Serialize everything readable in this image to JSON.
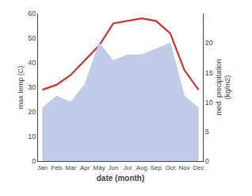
{
  "chart_data": {
    "type": "line",
    "x_label": "date (month)",
    "y_label": "max temp (C)",
    "y2_label": "med. precipitation\n(kg/m2)",
    "categories": [
      "Jan",
      "Feb",
      "Mar",
      "Apr",
      "May",
      "Jun",
      "Jul",
      "Aug",
      "Sep",
      "Oct",
      "Nov",
      "Dec"
    ],
    "series": [
      {
        "name": "precip",
        "type": "area",
        "axis": "y2",
        "color": "#c0cce8",
        "values": [
          9,
          11,
          10,
          13,
          20,
          17,
          18,
          18,
          19,
          20,
          11,
          9
        ]
      },
      {
        "name": "temp",
        "type": "line",
        "axis": "y",
        "color": "#cc3333",
        "values": [
          29,
          31,
          35,
          41,
          47,
          56,
          57,
          58,
          57,
          52,
          37,
          29
        ]
      }
    ],
    "ylim": [
      0,
      60
    ],
    "yticks": [
      0,
      10,
      20,
      30,
      40,
      50,
      60
    ],
    "y2lim": [
      0,
      25
    ],
    "y2ticks": [
      0,
      5,
      10,
      15,
      20
    ],
    "grid": false
  }
}
